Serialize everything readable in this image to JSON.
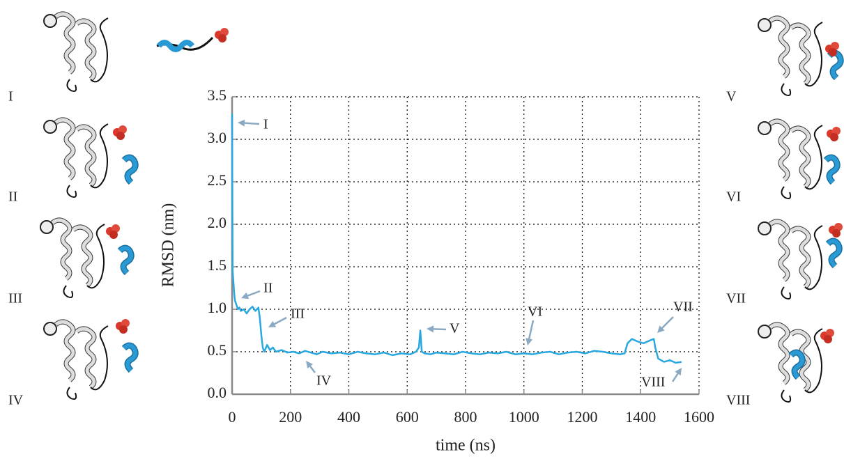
{
  "chart_data": {
    "type": "line",
    "xlabel": "time (ns)",
    "ylabel": "RMSD (nm)",
    "xlim": [
      0,
      1600
    ],
    "ylim": [
      0,
      3.5
    ],
    "xticks": [
      0,
      200,
      400,
      600,
      800,
      1000,
      1200,
      1400,
      1600
    ],
    "yticks": [
      {
        "value": 0,
        "label": "0.0"
      },
      0.5,
      {
        "value": 1,
        "label": "1.0"
      },
      1.5,
      {
        "value": 2,
        "label": "2.0"
      },
      2.5,
      {
        "value": 3,
        "label": "3.0"
      },
      3.5
    ],
    "grid": true,
    "series": [
      {
        "color": "#29a8e0",
        "x": [
          0,
          2,
          5,
          8,
          10,
          15,
          20,
          25,
          30,
          40,
          50,
          60,
          70,
          80,
          90,
          95,
          100,
          105,
          110,
          120,
          130,
          140,
          150,
          170,
          190,
          210,
          230,
          250,
          270,
          290,
          310,
          340,
          370,
          400,
          430,
          460,
          490,
          520,
          550,
          580,
          610,
          630,
          640,
          645,
          650,
          660,
          680,
          700,
          730,
          760,
          790,
          820,
          850,
          880,
          910,
          940,
          970,
          1000,
          1030,
          1060,
          1090,
          1120,
          1150,
          1180,
          1210,
          1240,
          1270,
          1300,
          1330,
          1345,
          1355,
          1370,
          1390,
          1410,
          1430,
          1445,
          1450,
          1460,
          1480,
          1500,
          1520,
          1540
        ],
        "values": [
          3.3,
          1.45,
          1.3,
          1.15,
          1.1,
          1.05,
          1.0,
          1.02,
          0.98,
          1.0,
          0.95,
          1.0,
          1.03,
          0.98,
          1.02,
          0.9,
          0.7,
          0.55,
          0.5,
          0.58,
          0.52,
          0.55,
          0.5,
          0.52,
          0.49,
          0.5,
          0.48,
          0.51,
          0.49,
          0.47,
          0.5,
          0.48,
          0.49,
          0.47,
          0.5,
          0.48,
          0.47,
          0.49,
          0.46,
          0.48,
          0.47,
          0.5,
          0.55,
          0.75,
          0.5,
          0.48,
          0.47,
          0.49,
          0.48,
          0.47,
          0.5,
          0.48,
          0.47,
          0.49,
          0.48,
          0.5,
          0.47,
          0.48,
          0.47,
          0.49,
          0.5,
          0.47,
          0.49,
          0.5,
          0.48,
          0.51,
          0.5,
          0.48,
          0.47,
          0.48,
          0.6,
          0.65,
          0.62,
          0.6,
          0.63,
          0.65,
          0.55,
          0.42,
          0.38,
          0.4,
          0.37,
          0.38
        ]
      }
    ],
    "annotations": [
      "I",
      "II",
      "III",
      "IV",
      "V",
      "VI",
      "VII",
      "VIII"
    ]
  },
  "panels": [
    "I",
    "II",
    "III",
    "IV",
    "V",
    "VI",
    "VII",
    "VIII"
  ]
}
